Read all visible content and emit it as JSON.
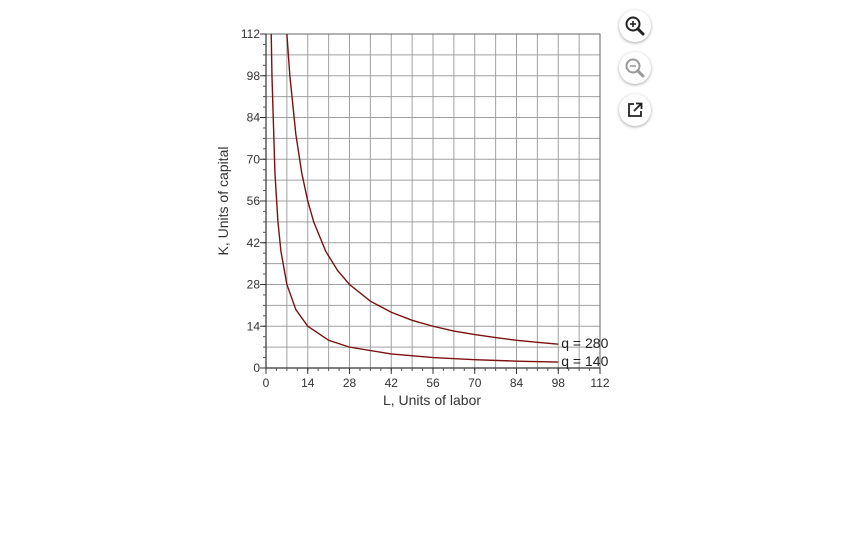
{
  "toolbar": {
    "zoom_in_icon": "zoom-in-icon",
    "zoom_out_icon": "zoom-out-icon",
    "external_link_icon": "external-link-icon"
  },
  "chart_data": {
    "type": "line",
    "xlabel": "L, Units of labor",
    "ylabel": "K, Units of capital",
    "xlim": [
      0,
      112
    ],
    "ylim": [
      0,
      112
    ],
    "x_ticks": [
      0,
      14,
      28,
      42,
      56,
      70,
      84,
      98,
      112
    ],
    "y_ticks": [
      0,
      14,
      28,
      42,
      56,
      70,
      84,
      98,
      112
    ],
    "grid": true,
    "series": [
      {
        "name": "q = 280",
        "label": "q = 280",
        "color": "#7a1010",
        "points": [
          [
            7,
            112
          ],
          [
            8,
            98
          ],
          [
            10,
            78.4
          ],
          [
            12,
            65.3
          ],
          [
            14,
            56
          ],
          [
            16,
            49
          ],
          [
            20,
            39.2
          ],
          [
            24,
            32.7
          ],
          [
            28,
            28
          ],
          [
            35,
            22.4
          ],
          [
            42,
            18.7
          ],
          [
            49,
            16
          ],
          [
            56,
            14
          ],
          [
            63,
            12.4
          ],
          [
            70,
            11.2
          ],
          [
            77,
            10.2
          ],
          [
            84,
            9.3
          ],
          [
            91,
            8.6
          ],
          [
            98,
            8
          ]
        ]
      },
      {
        "name": "q = 140",
        "label": "q = 140",
        "color": "#7a1010",
        "points": [
          [
            1.75,
            112
          ],
          [
            2,
            98
          ],
          [
            3,
            65.3
          ],
          [
            4,
            49
          ],
          [
            5,
            39.2
          ],
          [
            7,
            28
          ],
          [
            10,
            19.6
          ],
          [
            14,
            14
          ],
          [
            21,
            9.3
          ],
          [
            28,
            7
          ],
          [
            42,
            4.7
          ],
          [
            56,
            3.5
          ],
          [
            70,
            2.8
          ],
          [
            84,
            2.3
          ],
          [
            98,
            2
          ]
        ]
      }
    ]
  }
}
